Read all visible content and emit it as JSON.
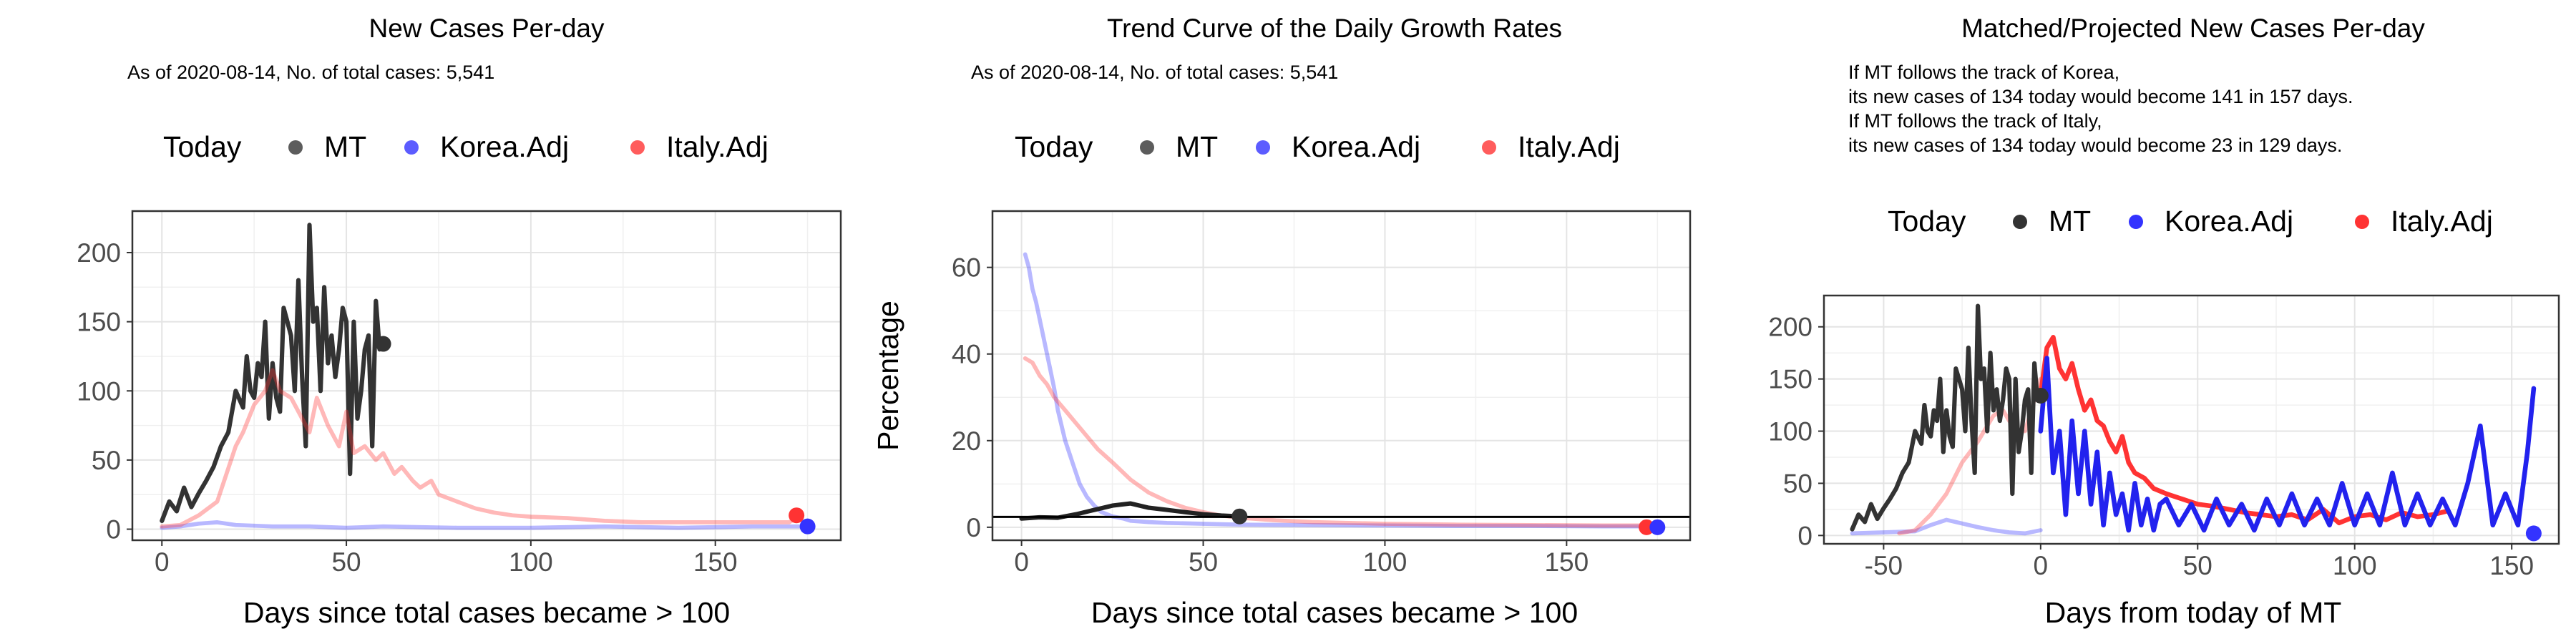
{
  "legend_today_label": "Today",
  "colors": {
    "MT": "#333333",
    "Korea.Adj": "#3333ff",
    "Italy.Adj": "#ff3333"
  },
  "chart_data": [
    {
      "type": "line",
      "title": "New Cases Per-day",
      "subtitle_lines": [
        "As of 2020-08-14, No. of total cases: 5,541"
      ],
      "xlabel": "Days since total cases became > 100",
      "ylabel": "",
      "xlim": [
        -8,
        184
      ],
      "ylim": [
        -8,
        230
      ],
      "xticks": [
        0,
        50,
        100,
        150
      ],
      "yticks": [
        0,
        50,
        100,
        150,
        200
      ],
      "grid": true,
      "legend_position": "top",
      "legend": [
        "MT",
        "Korea.Adj",
        "Italy.Adj"
      ],
      "series": [
        {
          "name": "MT",
          "color": "#333333",
          "alpha": 1,
          "lw": 2.8,
          "x": [
            0,
            2,
            4,
            6,
            8,
            10,
            12,
            14,
            16,
            18,
            20,
            22,
            23,
            24,
            25,
            26,
            27,
            28,
            29,
            30,
            31,
            32,
            33,
            34,
            35,
            36,
            37,
            38,
            39,
            40,
            41,
            42,
            43,
            44,
            45,
            46,
            47,
            48,
            49,
            50,
            51,
            52,
            53,
            54,
            55,
            56,
            57,
            58,
            59,
            60
          ],
          "y": [
            6,
            20,
            13,
            30,
            16,
            26,
            35,
            45,
            60,
            70,
            100,
            88,
            125,
            100,
            95,
            120,
            110,
            150,
            80,
            120,
            95,
            85,
            160,
            150,
            140,
            100,
            180,
            110,
            60,
            220,
            150,
            160,
            100,
            175,
            120,
            140,
            110,
            130,
            160,
            150,
            40,
            150,
            80,
            100,
            130,
            140,
            60,
            165,
            130,
            135
          ]
        },
        {
          "name": "Korea.Adj",
          "color": "#3333ff",
          "alpha": 0.35,
          "lw": 2.6,
          "x": [
            0,
            5,
            10,
            15,
            20,
            30,
            40,
            50,
            60,
            80,
            100,
            120,
            140,
            160,
            175
          ],
          "y": [
            1,
            2,
            4,
            5,
            3,
            2,
            2,
            1,
            2,
            1,
            1,
            2,
            1,
            2,
            2
          ]
        },
        {
          "name": "Italy.Adj",
          "color": "#ff3333",
          "alpha": 0.35,
          "lw": 2.6,
          "x": [
            0,
            5,
            10,
            15,
            20,
            22,
            25,
            28,
            30,
            32,
            35,
            38,
            40,
            42,
            45,
            48,
            50,
            52,
            55,
            58,
            60,
            63,
            65,
            68,
            70,
            73,
            75,
            78,
            80,
            85,
            90,
            95,
            100,
            110,
            120,
            130,
            140,
            150,
            160,
            170,
            173
          ],
          "y": [
            2,
            3,
            10,
            20,
            60,
            70,
            90,
            100,
            115,
            100,
            95,
            80,
            70,
            95,
            75,
            60,
            85,
            55,
            60,
            50,
            55,
            40,
            45,
            35,
            30,
            35,
            25,
            22,
            20,
            15,
            12,
            10,
            9,
            8,
            6,
            5,
            5,
            5,
            5,
            5,
            10
          ]
        }
      ],
      "today_points": [
        {
          "name": "MT",
          "x": 60,
          "y": 134
        },
        {
          "name": "Italy.Adj",
          "x": 172,
          "y": 10
        },
        {
          "name": "Korea.Adj",
          "x": 175,
          "y": 2
        }
      ]
    },
    {
      "type": "line",
      "title": "Trend Curve of the Daily Growth Rates",
      "subtitle_lines": [
        "As of 2020-08-14, No. of total cases: 5,541"
      ],
      "xlabel": "Days since total cases became > 100",
      "ylabel": "Percentage",
      "xlim": [
        -8,
        184
      ],
      "ylim": [
        -3,
        73
      ],
      "xticks": [
        0,
        50,
        100,
        150
      ],
      "yticks": [
        0,
        20,
        40,
        60
      ],
      "grid": true,
      "legend_position": "top",
      "legend": [
        "MT",
        "Korea.Adj",
        "Italy.Adj"
      ],
      "hline": 2.4,
      "series": [
        {
          "name": "Korea.Adj",
          "color": "#3333ff",
          "alpha": 0.35,
          "lw": 2.6,
          "x": [
            1,
            2,
            3,
            4,
            5,
            6,
            7,
            8,
            9,
            10,
            12,
            14,
            16,
            18,
            20,
            22,
            25,
            28,
            30,
            35,
            40,
            50,
            60,
            80,
            100,
            120,
            140,
            160,
            175
          ],
          "y": [
            63,
            60,
            55,
            52,
            48,
            44,
            40,
            36,
            32,
            27,
            20,
            15,
            10,
            7,
            5,
            3.5,
            2.5,
            2,
            1.5,
            1.2,
            1,
            0.8,
            0.6,
            0.5,
            0.4,
            0.3,
            0.3,
            0.2,
            0.2
          ]
        },
        {
          "name": "Italy.Adj",
          "color": "#ff3333",
          "alpha": 0.35,
          "lw": 2.6,
          "x": [
            1,
            3,
            5,
            7,
            9,
            12,
            15,
            18,
            21,
            25,
            30,
            35,
            40,
            45,
            50,
            55,
            60,
            70,
            80,
            90,
            100,
            120,
            140,
            160,
            173
          ],
          "y": [
            39,
            38,
            35,
            33,
            30,
            27,
            24,
            21,
            18,
            15,
            11,
            8,
            6,
            4.5,
            3.5,
            2.7,
            2.2,
            1.6,
            1.2,
            1,
            0.8,
            0.6,
            0.5,
            0.4,
            0.4
          ]
        },
        {
          "name": "MT",
          "color": "#222222",
          "alpha": 1,
          "lw": 2.8,
          "x": [
            0,
            5,
            10,
            15,
            20,
            25,
            30,
            35,
            40,
            45,
            50,
            55,
            60
          ],
          "y": [
            2,
            2.3,
            2.2,
            3,
            4,
            5,
            5.5,
            4.5,
            4,
            3.5,
            3,
            2.7,
            2.5
          ]
        }
      ],
      "today_points": [
        {
          "name": "MT",
          "x": 60,
          "y": 2.5
        },
        {
          "name": "Italy.Adj",
          "x": 172,
          "y": 0
        },
        {
          "name": "Korea.Adj",
          "x": 175,
          "y": 0
        }
      ]
    },
    {
      "type": "line",
      "title": "Matched/Projected New Cases Per-day",
      "subtitle_lines": [
        "If MT follows the track of Korea,",
        "its new cases of 134 today would become 141 in 157 days.",
        "If MT follows the track of Italy,",
        "its new cases of 134 today would become 23 in 129 days."
      ],
      "xlabel": "Days from today of MT",
      "ylabel": "",
      "xlim": [
        -69,
        165
      ],
      "ylim": [
        -8,
        230
      ],
      "xticks": [
        -50,
        0,
        50,
        100,
        150
      ],
      "yticks": [
        0,
        50,
        100,
        150,
        200
      ],
      "grid": true,
      "legend_position": "top",
      "legend": [
        "MT",
        "Korea.Adj",
        "Italy.Adj"
      ],
      "series": [
        {
          "name": "Korea.Adj (past)",
          "color": "#3333ff",
          "alpha": 0.35,
          "lw": 2.6,
          "x": [
            -60,
            -50,
            -40,
            -35,
            -30,
            -20,
            -15,
            -10,
            -5,
            0
          ],
          "y": [
            2,
            3,
            4,
            10,
            15,
            8,
            5,
            3,
            2,
            5
          ]
        },
        {
          "name": "Italy.Adj (past)",
          "color": "#ff3333",
          "alpha": 0.35,
          "lw": 2.6,
          "x": [
            -45,
            -40,
            -35,
            -30,
            -25,
            -20,
            -18,
            -15,
            -12,
            -10,
            -8,
            -5,
            -3,
            0
          ],
          "y": [
            2,
            5,
            20,
            40,
            70,
            90,
            100,
            115,
            120,
            110,
            100,
            100,
            120,
            150
          ]
        },
        {
          "name": "MT",
          "color": "#333333",
          "alpha": 1,
          "lw": 2.8,
          "x": [
            -60,
            -58,
            -56,
            -54,
            -52,
            -50,
            -48,
            -46,
            -44,
            -42,
            -40,
            -38,
            -37,
            -36,
            -35,
            -34,
            -33,
            -32,
            -31,
            -30,
            -29,
            -28,
            -27,
            -26,
            -25,
            -24,
            -23,
            -22,
            -21,
            -20,
            -19,
            -18,
            -17,
            -16,
            -15,
            -14,
            -13,
            -12,
            -11,
            -10,
            -9,
            -8,
            -7,
            -6,
            -5,
            -4,
            -3,
            -2,
            -1,
            0
          ],
          "y": [
            6,
            20,
            13,
            30,
            16,
            26,
            35,
            45,
            60,
            70,
            100,
            88,
            125,
            100,
            95,
            120,
            110,
            150,
            80,
            120,
            95,
            85,
            160,
            150,
            140,
            100,
            180,
            110,
            60,
            220,
            150,
            160,
            100,
            175,
            120,
            140,
            110,
            130,
            160,
            150,
            40,
            150,
            80,
            100,
            130,
            140,
            60,
            165,
            130,
            135
          ]
        },
        {
          "name": "Italy.Adj",
          "color": "#ff3333",
          "alpha": 1,
          "lw": 3,
          "x": [
            0,
            2,
            4,
            6,
            8,
            10,
            12,
            14,
            16,
            18,
            20,
            22,
            24,
            26,
            28,
            30,
            33,
            36,
            40,
            45,
            50,
            55,
            60,
            65,
            70,
            75,
            80,
            85,
            90,
            95,
            100,
            105,
            110,
            115,
            120,
            125,
            129
          ],
          "y": [
            135,
            180,
            190,
            160,
            150,
            165,
            140,
            120,
            130,
            110,
            105,
            90,
            80,
            95,
            70,
            60,
            55,
            45,
            40,
            35,
            30,
            28,
            25,
            22,
            20,
            18,
            20,
            15,
            25,
            12,
            18,
            20,
            15,
            22,
            18,
            20,
            23
          ]
        },
        {
          "name": "Korea.Adj",
          "color": "#2222ee",
          "alpha": 1,
          "lw": 3,
          "x": [
            0,
            2,
            4,
            6,
            8,
            10,
            12,
            14,
            16,
            18,
            20,
            22,
            24,
            26,
            28,
            30,
            32,
            34,
            36,
            38,
            40,
            44,
            48,
            52,
            56,
            60,
            64,
            68,
            72,
            76,
            80,
            84,
            88,
            92,
            96,
            100,
            104,
            108,
            112,
            116,
            120,
            124,
            128,
            132,
            136,
            140,
            144,
            148,
            152,
            155,
            157
          ],
          "y": [
            100,
            170,
            60,
            100,
            20,
            110,
            40,
            100,
            30,
            80,
            10,
            60,
            20,
            40,
            5,
            50,
            10,
            35,
            5,
            30,
            35,
            10,
            30,
            5,
            35,
            10,
            30,
            5,
            35,
            10,
            40,
            10,
            35,
            10,
            50,
            10,
            40,
            10,
            60,
            10,
            40,
            10,
            35,
            10,
            50,
            105,
            10,
            40,
            10,
            80,
            141
          ]
        }
      ],
      "today_points": [
        {
          "name": "MT",
          "x": 0,
          "y": 134
        },
        {
          "name": "Korea.Adj",
          "x": 157,
          "y": 2
        }
      ]
    }
  ]
}
